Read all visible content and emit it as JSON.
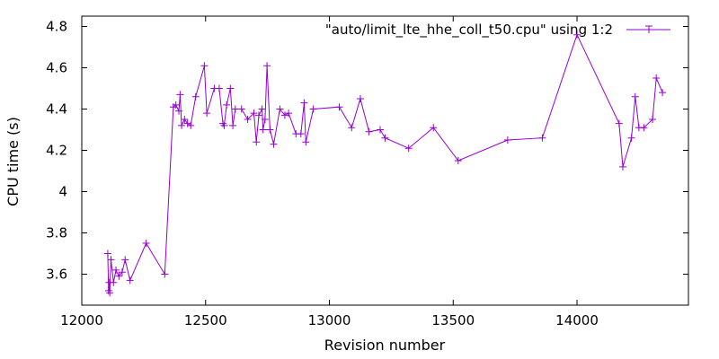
{
  "chart_data": {
    "type": "line",
    "title": "",
    "xlabel": "Revision number",
    "ylabel": "CPU time (s)",
    "xlim": [
      12000,
      14450
    ],
    "ylim": [
      3.45,
      4.85
    ],
    "x_ticks": [
      12000,
      12500,
      13000,
      13500,
      14000
    ],
    "x_tick_labels": [
      "12000",
      "12500",
      "13000",
      "13500",
      "14000"
    ],
    "y_ticks": [
      3.6,
      3.8,
      4.0,
      4.2,
      4.4,
      4.6,
      4.8
    ],
    "y_tick_labels": [
      "3.6",
      "3.8",
      "4",
      "4.2",
      "4.4",
      "4.6",
      "4.8"
    ],
    "grid": false,
    "legend": "top-right",
    "colors": {
      "series": "#9400d3"
    },
    "series": [
      {
        "name": "\"auto/limit_lte_hhe_coll_t50.cpu\" using 1:2",
        "points": [
          [
            12105,
            3.7
          ],
          [
            12108,
            3.52
          ],
          [
            12110,
            3.56
          ],
          [
            12113,
            3.51
          ],
          [
            12118,
            3.67
          ],
          [
            12128,
            3.56
          ],
          [
            12138,
            3.62
          ],
          [
            12150,
            3.59
          ],
          [
            12163,
            3.61
          ],
          [
            12175,
            3.67
          ],
          [
            12195,
            3.57
          ],
          [
            12260,
            3.75
          ],
          [
            12335,
            3.6
          ],
          [
            12370,
            4.41
          ],
          [
            12380,
            4.42
          ],
          [
            12392,
            4.39
          ],
          [
            12397,
            4.47
          ],
          [
            12403,
            4.32
          ],
          [
            12415,
            4.35
          ],
          [
            12427,
            4.33
          ],
          [
            12440,
            4.32
          ],
          [
            12460,
            4.46
          ],
          [
            12495,
            4.61
          ],
          [
            12505,
            4.38
          ],
          [
            12535,
            4.5
          ],
          [
            12555,
            4.5
          ],
          [
            12570,
            4.33
          ],
          [
            12575,
            4.32
          ],
          [
            12585,
            4.42
          ],
          [
            12600,
            4.5
          ],
          [
            12610,
            4.32
          ],
          [
            12620,
            4.4
          ],
          [
            12645,
            4.4
          ],
          [
            12670,
            4.35
          ],
          [
            12695,
            4.38
          ],
          [
            12705,
            4.24
          ],
          [
            12715,
            4.37
          ],
          [
            12728,
            4.4
          ],
          [
            12732,
            4.3
          ],
          [
            12740,
            4.35
          ],
          [
            12748,
            4.61
          ],
          [
            12760,
            4.3
          ],
          [
            12775,
            4.23
          ],
          [
            12800,
            4.4
          ],
          [
            12820,
            4.37
          ],
          [
            12835,
            4.38
          ],
          [
            12865,
            4.28
          ],
          [
            12885,
            4.28
          ],
          [
            12898,
            4.43
          ],
          [
            12905,
            4.24
          ],
          [
            12935,
            4.4
          ],
          [
            13040,
            4.41
          ],
          [
            13090,
            4.31
          ],
          [
            13125,
            4.45
          ],
          [
            13160,
            4.29
          ],
          [
            13205,
            4.3
          ],
          [
            13225,
            4.26
          ],
          [
            13320,
            4.21
          ],
          [
            13420,
            4.31
          ],
          [
            13520,
            4.15
          ],
          [
            13720,
            4.25
          ],
          [
            13860,
            4.26
          ],
          [
            14000,
            4.76
          ],
          [
            14170,
            4.33
          ],
          [
            14185,
            4.12
          ],
          [
            14220,
            4.26
          ],
          [
            14235,
            4.46
          ],
          [
            14250,
            4.31
          ],
          [
            14270,
            4.31
          ],
          [
            14305,
            4.35
          ],
          [
            14320,
            4.55
          ],
          [
            14345,
            4.48
          ]
        ]
      }
    ]
  }
}
